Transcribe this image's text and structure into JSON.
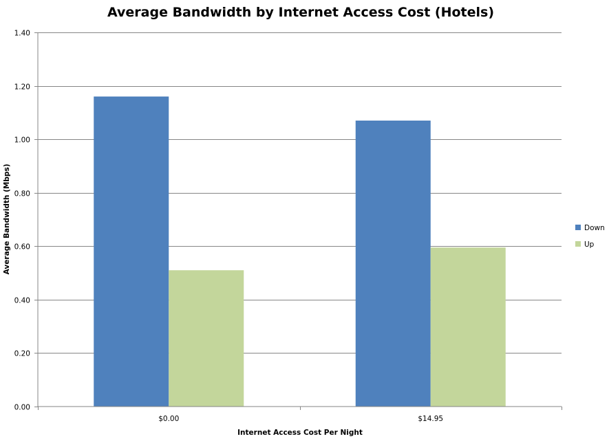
{
  "chart_data": {
    "type": "bar",
    "title": "Average Bandwidth by Internet Access Cost (Hotels)",
    "xlabel": "Internet Access Cost Per Night",
    "ylabel": "Average Bandwidth  (Mbps)",
    "categories": [
      "$0.00",
      "$14.95"
    ],
    "series": [
      {
        "name": "Down",
        "values": [
          1.16,
          1.07
        ],
        "color": "#4F81BD"
      },
      {
        "name": "Up",
        "values": [
          0.51,
          0.595
        ],
        "color": "#C3D69B"
      }
    ],
    "ylim": [
      0,
      1.4
    ],
    "yticks": [
      "0.00",
      "0.20",
      "0.40",
      "0.60",
      "0.80",
      "1.00",
      "1.20",
      "1.40"
    ],
    "grid": true,
    "legend_position": "right",
    "gridline_color": "#868686"
  }
}
